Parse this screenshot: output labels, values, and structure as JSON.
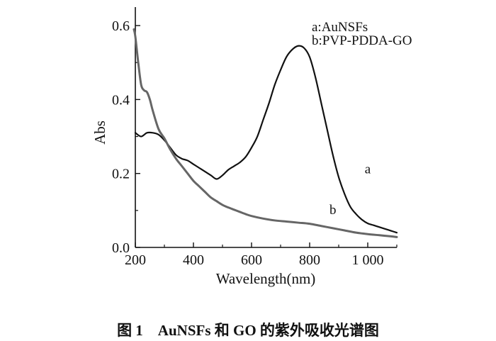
{
  "caption": "图 1　AuNSFs 和 GO 的紫外吸收光谱图",
  "chart_data": {
    "type": "line",
    "xlabel": "Wavelength(nm)",
    "ylabel": "Abs",
    "xlim": [
      200,
      1100
    ],
    "ylim": [
      0,
      0.65
    ],
    "xticks": [
      200,
      400,
      600,
      800,
      1000
    ],
    "xtick_labels": [
      "200",
      "400",
      "600",
      "800",
      "1 000"
    ],
    "yticks": [
      0.0,
      0.2,
      0.4,
      0.6
    ],
    "ytick_labels": [
      "0.0",
      "0.2",
      "0.4",
      "0.6"
    ],
    "grid": false,
    "legend_placement": "top-right",
    "legend": [
      "a:AuNSFs",
      "b:PVP-PDDA-GO"
    ],
    "series": [
      {
        "name": "a",
        "color": "#111111",
        "x": [
          200,
          220,
          240,
          260,
          280,
          300,
          320,
          340,
          360,
          380,
          400,
          420,
          440,
          460,
          480,
          500,
          520,
          540,
          560,
          580,
          600,
          620,
          640,
          660,
          680,
          700,
          720,
          740,
          760,
          780,
          800,
          820,
          840,
          860,
          880,
          900,
          920,
          940,
          960,
          980,
          1000,
          1020,
          1040,
          1060,
          1080,
          1100
        ],
        "y": [
          0.31,
          0.3,
          0.31,
          0.31,
          0.305,
          0.29,
          0.27,
          0.25,
          0.24,
          0.235,
          0.225,
          0.215,
          0.205,
          0.195,
          0.185,
          0.195,
          0.21,
          0.22,
          0.23,
          0.245,
          0.27,
          0.3,
          0.345,
          0.39,
          0.44,
          0.48,
          0.515,
          0.535,
          0.545,
          0.54,
          0.515,
          0.46,
          0.39,
          0.32,
          0.25,
          0.19,
          0.145,
          0.11,
          0.09,
          0.075,
          0.065,
          0.06,
          0.055,
          0.05,
          0.045,
          0.04
        ]
      },
      {
        "name": "b",
        "color": "#666666",
        "x": [
          195,
          200,
          210,
          220,
          230,
          240,
          250,
          260,
          280,
          300,
          320,
          340,
          360,
          380,
          400,
          420,
          440,
          460,
          480,
          500,
          520,
          540,
          560,
          580,
          600,
          640,
          680,
          720,
          760,
          800,
          840,
          880,
          920,
          960,
          1000,
          1040,
          1080,
          1100
        ],
        "y": [
          0.59,
          0.57,
          0.5,
          0.44,
          0.425,
          0.42,
          0.4,
          0.37,
          0.32,
          0.295,
          0.265,
          0.24,
          0.22,
          0.2,
          0.18,
          0.165,
          0.15,
          0.135,
          0.125,
          0.115,
          0.108,
          0.102,
          0.096,
          0.09,
          0.085,
          0.078,
          0.073,
          0.07,
          0.067,
          0.064,
          0.058,
          0.052,
          0.046,
          0.04,
          0.036,
          0.033,
          0.03,
          0.028
        ]
      }
    ],
    "annotations": [
      {
        "text": "a",
        "x": 1000,
        "y": 0.2
      },
      {
        "text": "b",
        "x": 880,
        "y": 0.09
      }
    ]
  }
}
